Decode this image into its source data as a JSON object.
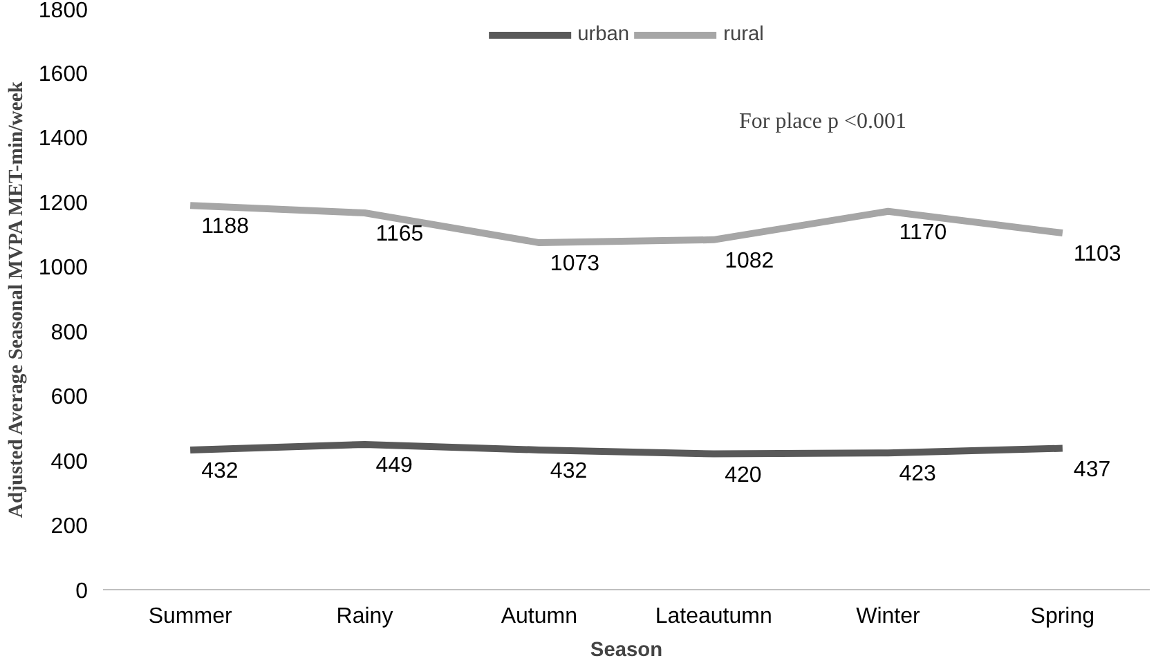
{
  "chart_data": {
    "type": "line",
    "xlabel": "Season",
    "ylabel": "Adjusted Average Seasonal MVPA MET-min/week",
    "categories": [
      "Summer",
      "Rainy",
      "Autumn",
      "Lateautumn",
      "Winter",
      "Spring"
    ],
    "series": [
      {
        "name": "urban",
        "color": "#595959",
        "values": [
          432,
          449,
          432,
          420,
          423,
          437
        ]
      },
      {
        "name": "rural",
        "color": "#a6a6a6",
        "values": [
          1188,
          1165,
          1073,
          1082,
          1170,
          1103
        ]
      }
    ],
    "ylim": [
      0,
      1800
    ],
    "yticks": [
      0,
      200,
      400,
      600,
      800,
      1000,
      1200,
      1400,
      1600,
      1800
    ],
    "grid": false,
    "legend": "top",
    "data_labels": true,
    "marker": "none",
    "line_style": "solid",
    "annotations": [
      "For place p <0.001"
    ]
  }
}
